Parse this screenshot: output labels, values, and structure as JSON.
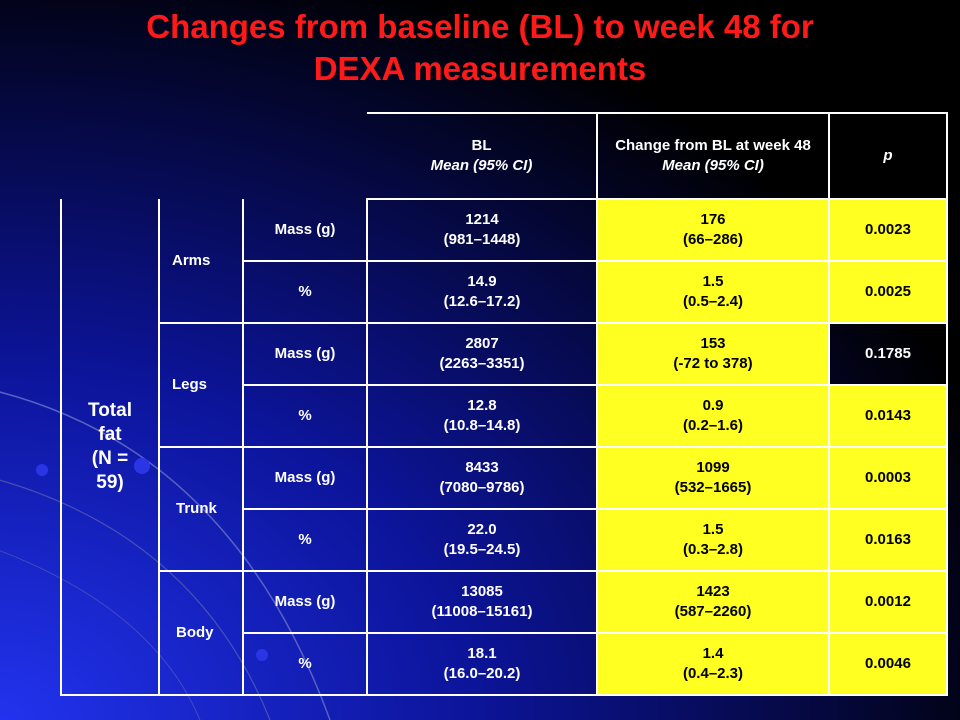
{
  "title_line1": "Changes from baseline (BL) to week 48 for",
  "title_line2": "DEXA measurements",
  "header": {
    "bl": "BL",
    "bl_sub": "Mean (95% CI)",
    "change": "Change from BL at week 48",
    "change_sub": "Mean (95% CI)",
    "p": "p"
  },
  "group": {
    "line1": "Total",
    "line2": "fat",
    "line3": "(N =",
    "line4": "59)"
  },
  "regions": [
    {
      "name": "Arms",
      "rows": [
        {
          "measure": "Mass (g)",
          "bl_mean": "1214",
          "bl_ci": "(981–1448)",
          "ch_mean": "176",
          "ch_ci": "(66–286)",
          "p": "0.0023"
        },
        {
          "measure": "%",
          "bl_mean": "14.9",
          "bl_ci": "(12.6–17.2)",
          "ch_mean": "1.5",
          "ch_ci": "(0.5–2.4)",
          "p": "0.0025"
        }
      ]
    },
    {
      "name": "Legs",
      "rows": [
        {
          "measure": "Mass (g)",
          "bl_mean": "2807",
          "bl_ci": "(2263–3351)",
          "ch_mean": "153",
          "ch_ci": "(-72 to 378)",
          "p": "0.1785"
        },
        {
          "measure": "%",
          "bl_mean": "12.8",
          "bl_ci": "(10.8–14.8)",
          "ch_mean": "0.9",
          "ch_ci": "(0.2–1.6)",
          "p": "0.0143"
        }
      ]
    },
    {
      "name": "Trunk",
      "rows": [
        {
          "measure": "Mass (g)",
          "bl_mean": "8433",
          "bl_ci": "(7080–9786)",
          "ch_mean": "1099",
          "ch_ci": "(532–1665)",
          "p": "0.0003"
        },
        {
          "measure": "%",
          "bl_mean": "22.0",
          "bl_ci": "(19.5–24.5)",
          "ch_mean": "1.5",
          "ch_ci": "(0.3–2.8)",
          "p": "0.0163"
        }
      ]
    },
    {
      "name": "Body",
      "rows": [
        {
          "measure": "Mass (g)",
          "bl_mean": "13085",
          "bl_ci": "(11008–15161)",
          "ch_mean": "1423",
          "ch_ci": "(587–2260)",
          "p": "0.0012"
        },
        {
          "measure": "%",
          "bl_mean": "18.1",
          "bl_ci": "(16.0–20.2)",
          "ch_mean": "1.4",
          "ch_ci": "(0.4–2.3)",
          "p": "0.0046"
        }
      ]
    }
  ],
  "colors": {
    "background": "#000000",
    "title": "#ff1a1a",
    "highlight": "#ffff22",
    "accent_blue": "#1e2fd6"
  }
}
